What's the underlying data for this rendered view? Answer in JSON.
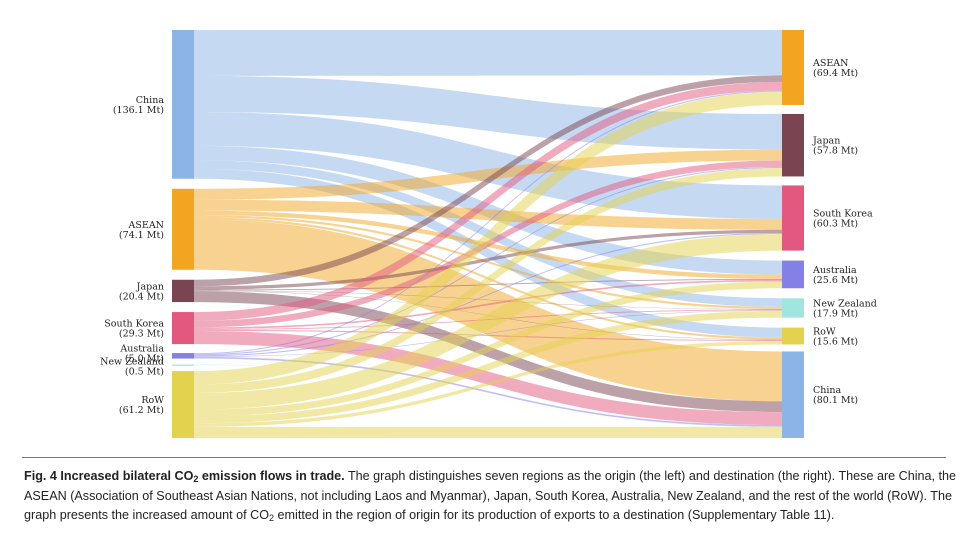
{
  "figure": {
    "source_nodes": [
      {
        "id": "China",
        "name": "China",
        "value_label": "(136.1 Mt)",
        "value": 136.1,
        "color": "#8db4e6"
      },
      {
        "id": "ASEAN",
        "name": "ASEAN",
        "value_label": "(74.1 Mt)",
        "value": 74.1,
        "color": "#f1a521"
      },
      {
        "id": "Japan",
        "name": "Japan",
        "value_label": "(20.4 Mt)",
        "value": 20.4,
        "color": "#7a4551"
      },
      {
        "id": "South Korea",
        "name": "South Korea",
        "value_label": "(29.3 Mt)",
        "value": 29.3,
        "color": "#e2587f"
      },
      {
        "id": "Australia",
        "name": "Australia",
        "value_label": "(5.0 Mt)",
        "value": 5.0,
        "color": "#8480e6"
      },
      {
        "id": "New Zealand",
        "name": "New Zealand",
        "value_label": "(0.5 Mt)",
        "value": 0.5,
        "color": "#9fe6df"
      },
      {
        "id": "RoW",
        "name": "RoW",
        "value_label": "(61.2 Mt)",
        "value": 61.2,
        "color": "#e3d24d"
      }
    ],
    "target_nodes": [
      {
        "id": "ASEAN",
        "name": "ASEAN",
        "value_label": "(69.4 Mt)",
        "value": 69.4,
        "color": "#f1a521"
      },
      {
        "id": "Japan",
        "name": "Japan",
        "value_label": "(57.8 Mt)",
        "value": 57.8,
        "color": "#7a4551"
      },
      {
        "id": "South Korea",
        "name": "South Korea",
        "value_label": "(60.3 Mt)",
        "value": 60.3,
        "color": "#e2587f"
      },
      {
        "id": "Australia",
        "name": "Australia",
        "value_label": "(25.6 Mt)",
        "value": 25.6,
        "color": "#8480e6"
      },
      {
        "id": "New Zealand",
        "name": "New Zealand",
        "value_label": "(17.9 Mt)",
        "value": 17.9,
        "color": "#9fe6df"
      },
      {
        "id": "RoW",
        "name": "RoW",
        "value_label": "(15.6 Mt)",
        "value": 15.6,
        "color": "#e3d24d"
      },
      {
        "id": "China",
        "name": "China",
        "value_label": "(80.1 Mt)",
        "value": 80.1,
        "color": "#8db4e6"
      }
    ],
    "flows": [
      {
        "source": "China",
        "target": "ASEAN",
        "value": 42
      },
      {
        "source": "China",
        "target": "Japan",
        "value": 33
      },
      {
        "source": "China",
        "target": "South Korea",
        "value": 31
      },
      {
        "source": "China",
        "target": "Australia",
        "value": 13
      },
      {
        "source": "China",
        "target": "New Zealand",
        "value": 8
      },
      {
        "source": "China",
        "target": "RoW",
        "value": 9.1
      },
      {
        "source": "ASEAN",
        "target": "Japan",
        "value": 10
      },
      {
        "source": "ASEAN",
        "target": "South Korea",
        "value": 10
      },
      {
        "source": "ASEAN",
        "target": "Australia",
        "value": 4
      },
      {
        "source": "ASEAN",
        "target": "New Zealand",
        "value": 2
      },
      {
        "source": "ASEAN",
        "target": "RoW",
        "value": 2
      },
      {
        "source": "ASEAN",
        "target": "China",
        "value": 46.1
      },
      {
        "source": "Japan",
        "target": "ASEAN",
        "value": 6
      },
      {
        "source": "Japan",
        "target": "South Korea",
        "value": 3
      },
      {
        "source": "Japan",
        "target": "Australia",
        "value": 0.8
      },
      {
        "source": "Japan",
        "target": "New Zealand",
        "value": 0.3
      },
      {
        "source": "Japan",
        "target": "RoW",
        "value": 0.3
      },
      {
        "source": "Japan",
        "target": "China",
        "value": 10
      },
      {
        "source": "South Korea",
        "target": "ASEAN",
        "value": 8
      },
      {
        "source": "South Korea",
        "target": "Japan",
        "value": 6
      },
      {
        "source": "South Korea",
        "target": "Australia",
        "value": 1.5
      },
      {
        "source": "South Korea",
        "target": "New Zealand",
        "value": 0.8
      },
      {
        "source": "South Korea",
        "target": "RoW",
        "value": 1
      },
      {
        "source": "South Korea",
        "target": "China",
        "value": 12
      },
      {
        "source": "Australia",
        "target": "ASEAN",
        "value": 1
      },
      {
        "source": "Australia",
        "target": "Japan",
        "value": 1
      },
      {
        "source": "Australia",
        "target": "South Korea",
        "value": 1
      },
      {
        "source": "Australia",
        "target": "New Zealand",
        "value": 0.5
      },
      {
        "source": "Australia",
        "target": "China",
        "value": 1.5
      },
      {
        "source": "New Zealand",
        "target": "ASEAN",
        "value": 0.1
      },
      {
        "source": "New Zealand",
        "target": "Japan",
        "value": 0.1
      },
      {
        "source": "New Zealand",
        "target": "Australia",
        "value": 0.1
      },
      {
        "source": "New Zealand",
        "target": "China",
        "value": 0.2
      },
      {
        "source": "RoW",
        "target": "ASEAN",
        "value": 12.3
      },
      {
        "source": "RoW",
        "target": "Japan",
        "value": 7.7
      },
      {
        "source": "RoW",
        "target": "South Korea",
        "value": 15.3
      },
      {
        "source": "RoW",
        "target": "Australia",
        "value": 6.2
      },
      {
        "source": "RoW",
        "target": "New Zealand",
        "value": 6.3
      },
      {
        "source": "RoW",
        "target": "RoW",
        "value": 3.2
      },
      {
        "source": "RoW",
        "target": "China",
        "value": 10.3
      }
    ]
  },
  "caption": {
    "title_part1": "Fig. 4 Increased bilateral CO",
    "title_sub": "2",
    "title_part2": " emission flows in trade.",
    "body_part1": " The graph distinguishes seven regions as the origin (the left) and destination (the right). These are China, the ASEAN (Association of Southeast Asian Nations, not including Laos and Myanmar), Japan, South Korea, Australia, New Zealand, and the rest of the world (RoW). The graph presents the increased amount of CO",
    "body_sub": "2",
    "body_part2": " emitted in the region of origin for its production of exports to a destination (Supplementary Table 11)."
  }
}
